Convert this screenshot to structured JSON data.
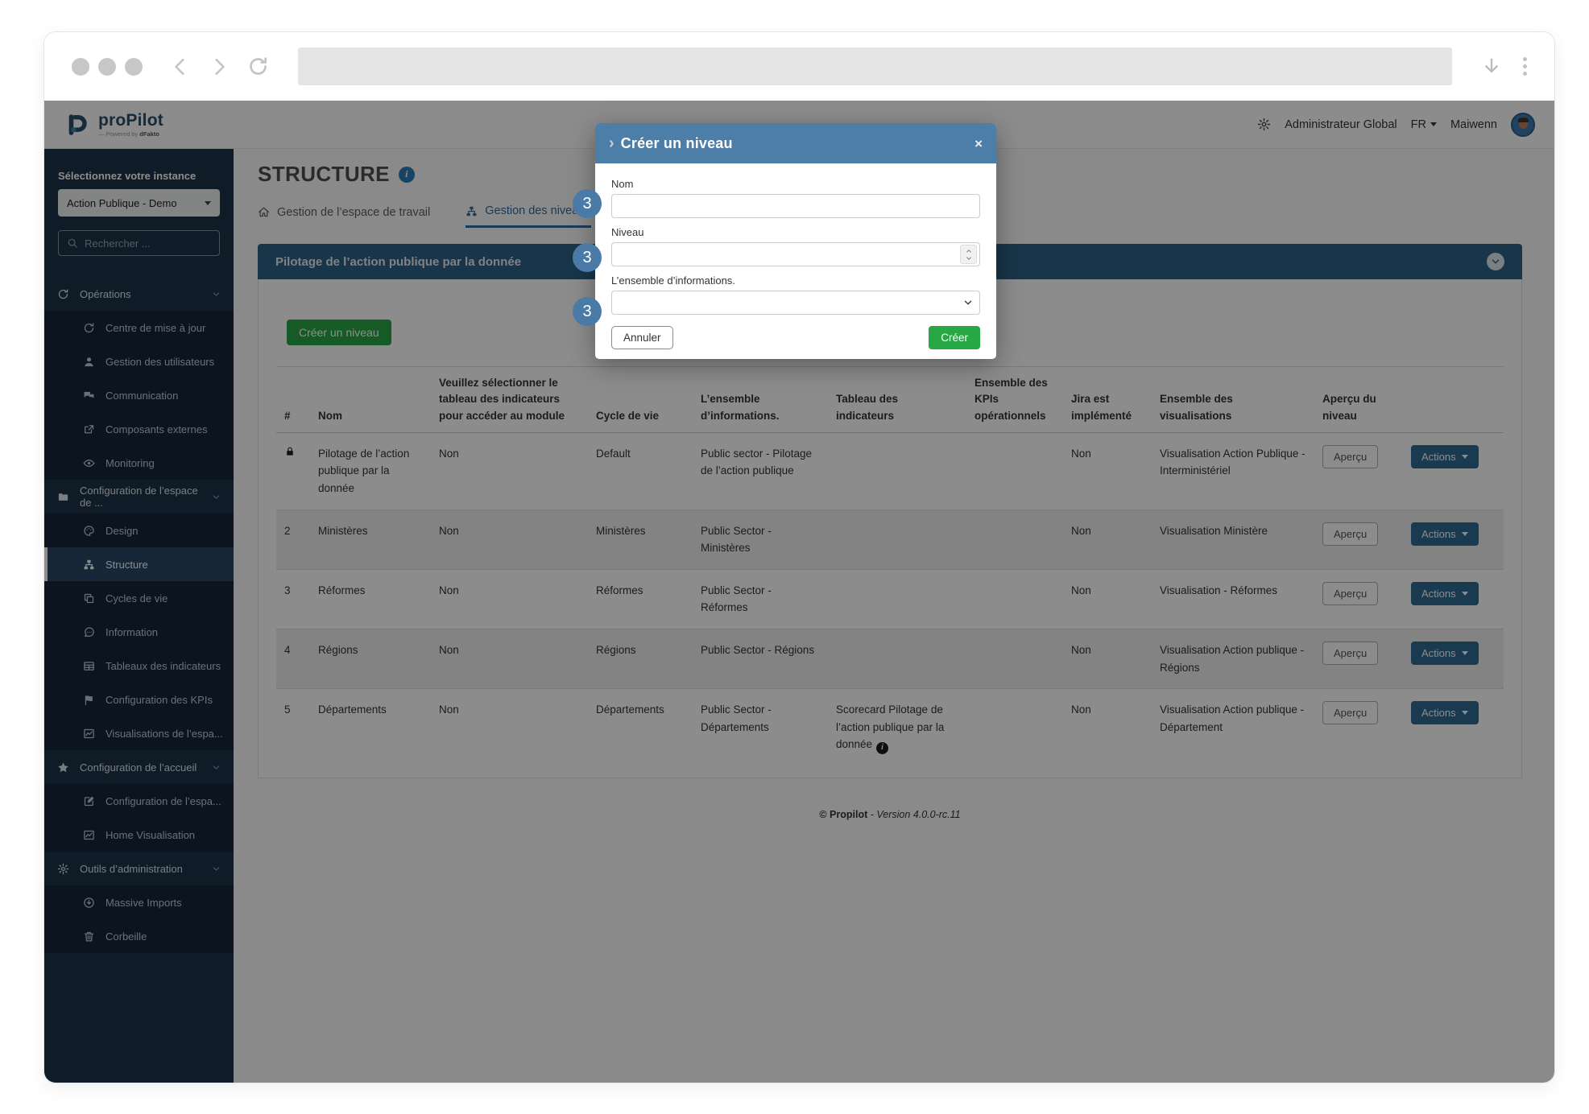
{
  "colors": {
    "sidebar": "#1d3349",
    "panel_header": "#2f6285",
    "modal_header": "#4d7ea8",
    "accent_green": "#28a745",
    "tab_active": "#2d6ca2",
    "actions_button": "#306b92",
    "badge": "#4a7ba6"
  },
  "navbar": {
    "logo_text": "proPilot",
    "logo_sub_prefix": "— Powered by ",
    "logo_sub_brand": "dFakto",
    "role": "Administrateur Global",
    "lang": "FR",
    "user": "Maiwenn"
  },
  "sidebar": {
    "instance_label": "Sélectionnez votre instance",
    "instance_value": "Action Publique - Demo",
    "search_placeholder": "Rechercher ...",
    "sections": [
      {
        "icon": "refresh",
        "label": "Opérations",
        "items": [
          {
            "icon": "refresh",
            "label": "Centre de mise à jour"
          },
          {
            "icon": "user",
            "label": "Gestion des utilisateurs"
          },
          {
            "icon": "chat",
            "label": "Communication"
          },
          {
            "icon": "share",
            "label": "Composants externes"
          },
          {
            "icon": "eye",
            "label": "Monitoring"
          }
        ]
      },
      {
        "icon": "folder",
        "label": "Configuration de l’espace de ...",
        "items": [
          {
            "icon": "palette",
            "label": "Design"
          },
          {
            "icon": "sitemap",
            "label": "Structure",
            "active": true
          },
          {
            "icon": "copy",
            "label": "Cycles de vie"
          },
          {
            "icon": "comment",
            "label": "Information"
          },
          {
            "icon": "table",
            "label": "Tableaux des indicateurs"
          },
          {
            "icon": "flag",
            "label": "Configuration des KPIs"
          },
          {
            "icon": "chart",
            "label": "Visualisations de l’espa..."
          }
        ]
      },
      {
        "icon": "star",
        "label": "Configuration de l’accueil",
        "items": [
          {
            "icon": "edit",
            "label": "Configuration de l’espa..."
          },
          {
            "icon": "chart",
            "label": "Home Visualisation"
          }
        ]
      },
      {
        "icon": "gear",
        "label": "Outils d’administration",
        "items": [
          {
            "icon": "downloadc",
            "label": "Massive Imports"
          },
          {
            "icon": "trash",
            "label": "Corbeille"
          }
        ]
      }
    ]
  },
  "main": {
    "title": "STRUCTURE",
    "tabs": [
      {
        "icon": "home",
        "label": "Gestion de l’espace de travail",
        "active": false
      },
      {
        "icon": "sitemap",
        "label": "Gestion des niveaux",
        "active": true
      }
    ],
    "panel_title": "Pilotage de l’action publique par la donnée",
    "create_button": "Créer un niveau",
    "table": {
      "headers": [
        "#",
        "Nom",
        "Veuillez sélectionner le tableau des indicateurs pour accéder au module",
        "Cycle de vie",
        "L’ensemble d’informations.",
        "Tableau des indicateurs",
        "Ensemble des KPIs opérationnels",
        "Jira est implémenté",
        "Ensemble des visualisations",
        "Aperçu du niveau",
        ""
      ],
      "apercu_label": "Aperçu",
      "actions_label": "Actions",
      "rows": [
        {
          "num": "",
          "lock": true,
          "nom": "Pilotage de l’action publique par la donnée",
          "module": "Non",
          "cycle": "Default",
          "ensemble": "Public sector - Pilotage de l’action publique",
          "tableau": "",
          "tableau_info": false,
          "kpis": "",
          "jira": "Non",
          "vis": "Visualisation Action Publique - Interministériel"
        },
        {
          "num": "2",
          "lock": false,
          "nom": "Ministères",
          "module": "Non",
          "cycle": "Ministères",
          "ensemble": "Public Sector - Ministères",
          "tableau": "",
          "tableau_info": false,
          "kpis": "",
          "jira": "Non",
          "vis": "Visualisation Ministère"
        },
        {
          "num": "3",
          "lock": false,
          "nom": "Réformes",
          "module": "Non",
          "cycle": "Réformes",
          "ensemble": "Public Sector - Réformes",
          "tableau": "",
          "tableau_info": false,
          "kpis": "",
          "jira": "Non",
          "vis": "Visualisation - Réformes"
        },
        {
          "num": "4",
          "lock": false,
          "nom": "Régions",
          "module": "Non",
          "cycle": "Régions",
          "ensemble": "Public Sector - Régions",
          "tableau": "",
          "tableau_info": false,
          "kpis": "",
          "jira": "Non",
          "vis": "Visualisation Action publique - Régions"
        },
        {
          "num": "5",
          "lock": false,
          "nom": "Départements",
          "module": "Non",
          "cycle": "Départements",
          "ensemble": "Public Sector - Départements",
          "tableau": "Scorecard Pilotage de l’action publique par la donnée",
          "tableau_info": true,
          "kpis": "",
          "jira": "Non",
          "vis": "Visualisation Action publique - Département"
        }
      ]
    },
    "footer_brand": "© Propilot",
    "footer_version": " - Version 4.0.0-rc.11"
  },
  "modal": {
    "title": "Créer un niveau",
    "arrow": "›",
    "close": "×",
    "badge": "3",
    "fields": [
      {
        "label": "Nom",
        "type": "text",
        "value": ""
      },
      {
        "label": "Niveau",
        "type": "number",
        "value": ""
      },
      {
        "label": "L’ensemble d’informations.",
        "type": "select",
        "value": ""
      }
    ],
    "cancel": "Annuler",
    "submit": "Créer"
  }
}
